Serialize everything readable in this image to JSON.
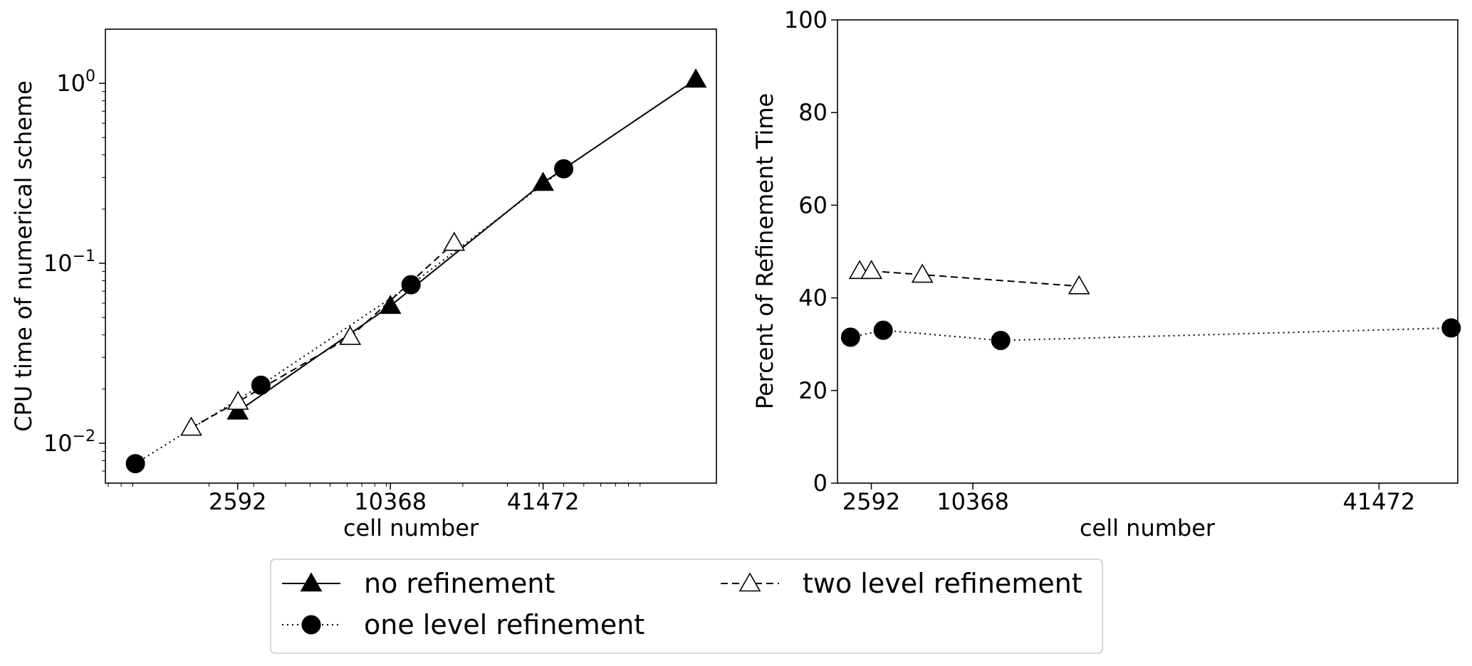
{
  "chart_data": [
    {
      "type": "line",
      "title": "",
      "xlabel": "cell number",
      "ylabel": "CPU time of numerical scheme",
      "xscale": "log",
      "yscale": "log",
      "xlim": [
        780,
        200000
      ],
      "ylim": [
        0.006,
        2.0
      ],
      "xticks": [
        2592,
        10368,
        41472
      ],
      "yticks": [
        {
          "value": 0.01,
          "label_base": "10",
          "label_exp": "−2"
        },
        {
          "value": 0.1,
          "label_base": "10",
          "label_exp": "−1"
        },
        {
          "value": 1,
          "label_base": "10",
          "label_exp": "0"
        }
      ],
      "grid": false,
      "series": [
        {
          "name": "no refinement",
          "marker": "triangle-filled",
          "linestyle": "solid",
          "x": [
            2592,
            10368,
            41472,
            165888
          ],
          "y": [
            0.015,
            0.058,
            0.28,
            1.05
          ]
        },
        {
          "name": "one level refinement",
          "marker": "circle-filled",
          "linestyle": "dotted",
          "x": [
            1024,
            3200,
            12500,
            50000
          ],
          "y": [
            0.0077,
            0.021,
            0.076,
            0.335
          ]
        },
        {
          "name": "two level refinement",
          "marker": "triangle-open",
          "linestyle": "dashed",
          "x": [
            1700,
            2600,
            7200,
            18500
          ],
          "y": [
            0.0122,
            0.017,
            0.039,
            0.13
          ]
        }
      ]
    },
    {
      "type": "line",
      "title": "",
      "xlabel": "cell number",
      "ylabel": "Percent of Refinement Time",
      "xscale": "linear",
      "yscale": "linear",
      "xlim": [
        0,
        47500
      ],
      "ylim": [
        0,
        100
      ],
      "xticks": [
        2592,
        10368,
        41472
      ],
      "yticks": [
        0,
        20,
        40,
        60,
        80,
        100
      ],
      "grid": false,
      "series": [
        {
          "name": "one level refinement",
          "marker": "circle-filled",
          "linestyle": "dotted",
          "x": [
            1000,
            3500,
            12500,
            47000
          ],
          "y": [
            31.5,
            33.0,
            30.8,
            33.5
          ]
        },
        {
          "name": "two level refinement",
          "marker": "triangle-open",
          "linestyle": "dashed",
          "x": [
            1700,
            2600,
            6500,
            18500
          ],
          "y": [
            45.8,
            45.8,
            45.0,
            42.5
          ]
        }
      ]
    }
  ],
  "legend": {
    "placement": "bottom-center",
    "entries": [
      {
        "label": "no refinement",
        "marker": "triangle-filled",
        "linestyle": "solid"
      },
      {
        "label": "one level refinement",
        "marker": "circle-filled",
        "linestyle": "dotted"
      },
      {
        "label": "two level refinement",
        "marker": "triangle-open",
        "linestyle": "dashed"
      }
    ]
  }
}
